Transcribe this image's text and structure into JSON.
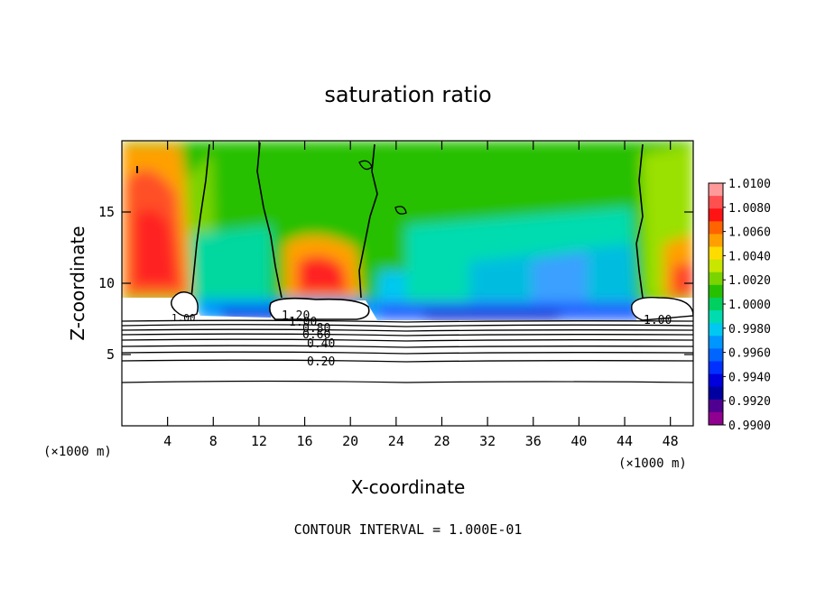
{
  "chart_data": {
    "type": "heatmap",
    "title": "saturation ratio",
    "xlabel": "X-coordinate",
    "ylabel": "Z-coordinate",
    "x_multiplier_label": "(×1000 m)",
    "x_multiplier_label_right": "(×1000 m)",
    "xlim": [
      0,
      50
    ],
    "ylim": [
      0,
      20
    ],
    "x_ticks": [
      4,
      8,
      12,
      16,
      20,
      24,
      28,
      32,
      36,
      40,
      44,
      48
    ],
    "y_ticks": [
      5,
      10,
      15
    ],
    "grid": false,
    "colorbar": {
      "labels": [
        "1.0100",
        "1.0080",
        "1.0060",
        "1.0040",
        "1.0020",
        "1.0000",
        "0.9980",
        "0.9960",
        "0.9940",
        "0.9920",
        "0.9900"
      ],
      "colors": [
        "#ff9a9a",
        "#ff5050",
        "#ff1414",
        "#ff6400",
        "#ffa000",
        "#ffdc00",
        "#c8e600",
        "#7ad400",
        "#26c000",
        "#00d060",
        "#00dcb0",
        "#00c8f0",
        "#0096ff",
        "#0064ff",
        "#0030ff",
        "#0000dc",
        "#0000a0",
        "#500090",
        "#900090"
      ]
    },
    "contour_labels": [
      "1.20",
      "1.00",
      "0.80",
      "0.60",
      "0.40",
      "0.20",
      "1.00",
      "1.00"
    ],
    "annotation": "CONTOUR INTERVAL = 1.000E-01"
  }
}
